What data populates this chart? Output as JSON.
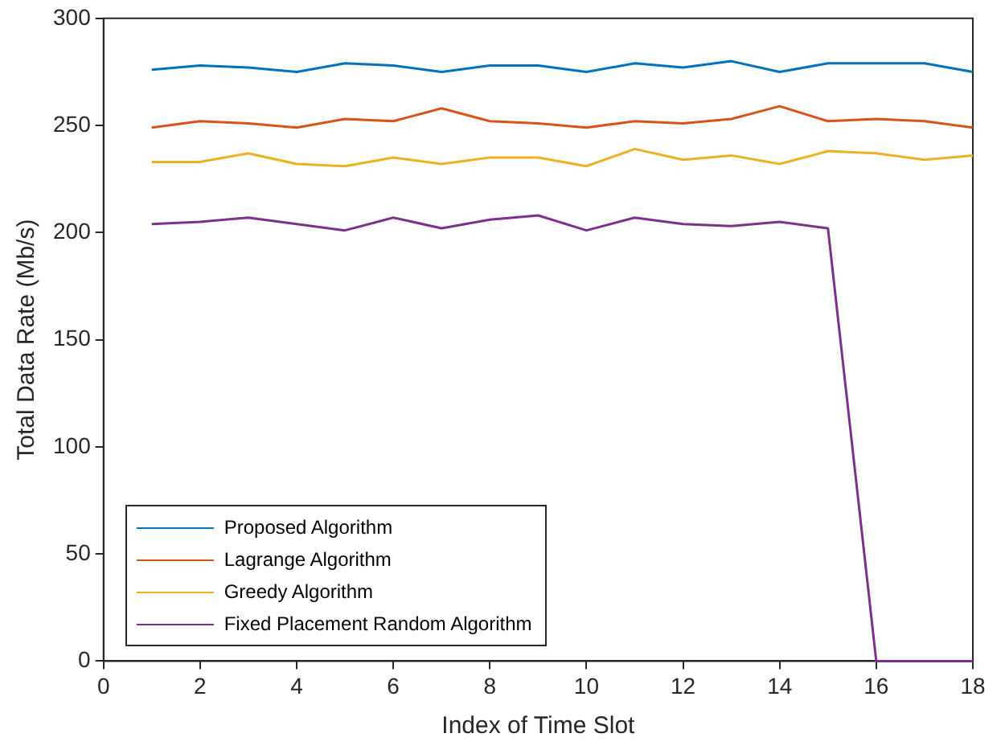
{
  "chart_data": {
    "type": "line",
    "xlabel": "Index of Time Slot",
    "ylabel": "Total Data Rate (Mb/s)",
    "x": [
      1,
      2,
      3,
      4,
      5,
      6,
      7,
      8,
      9,
      10,
      11,
      12,
      13,
      14,
      15,
      16,
      17,
      18
    ],
    "xlim": [
      0,
      18
    ],
    "xticks": [
      0,
      2,
      4,
      6,
      8,
      10,
      12,
      14,
      16,
      18
    ],
    "ylim": [
      0,
      300
    ],
    "yticks": [
      0,
      50,
      100,
      150,
      200,
      250,
      300
    ],
    "grid": false,
    "legend": "bottom left",
    "marker": "none",
    "line_style": "solid",
    "series": [
      {
        "name": "Proposed Algorithm",
        "color": "#0072bd",
        "values": [
          276,
          278,
          277,
          275,
          279,
          278,
          275,
          278,
          278,
          275,
          279,
          277,
          280,
          275,
          279,
          279,
          279,
          275
        ]
      },
      {
        "name": "Lagrange Algorithm",
        "color": "#d95319",
        "values": [
          249,
          252,
          251,
          249,
          253,
          252,
          258,
          252,
          251,
          249,
          252,
          251,
          253,
          259,
          252,
          253,
          252,
          249
        ]
      },
      {
        "name": "Greedy Algorithm",
        "color": "#edb120",
        "values": [
          233,
          233,
          237,
          232,
          231,
          235,
          232,
          235,
          235,
          231,
          239,
          234,
          236,
          232,
          238,
          237,
          234,
          236
        ]
      },
      {
        "name": "Fixed Placement Random Algorithm",
        "color": "#7e2f8e",
        "values": [
          204,
          205,
          207,
          204,
          201,
          207,
          202,
          206,
          208,
          201,
          207,
          204,
          203,
          205,
          202,
          0,
          0,
          0
        ]
      }
    ]
  }
}
